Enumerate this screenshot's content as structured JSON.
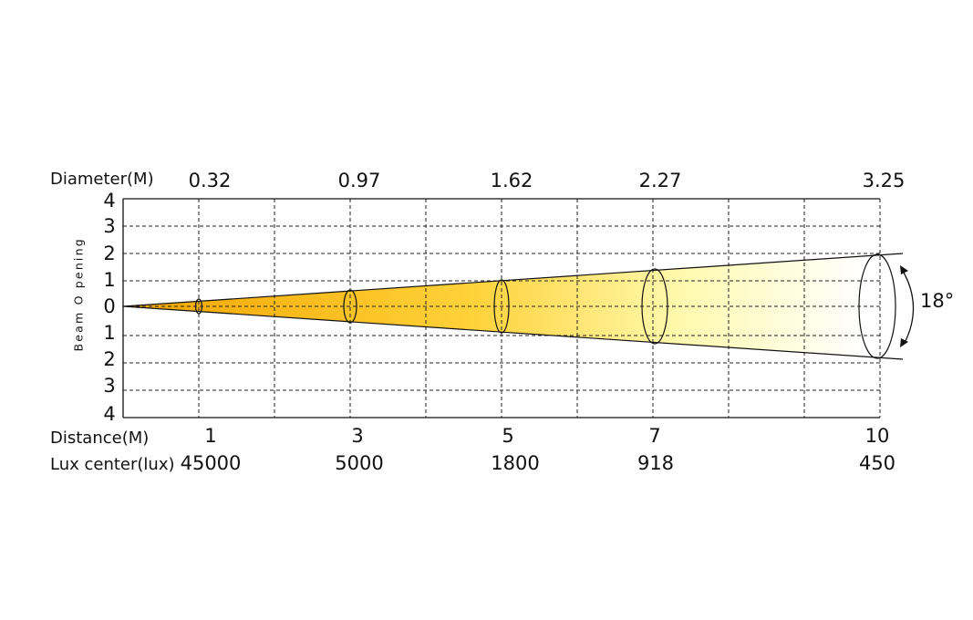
{
  "diameter_row": {
    "label": "Diameter(M)",
    "values": [
      "0.32",
      "0.97",
      "1.62",
      "2.27",
      "3.25"
    ]
  },
  "distance_row": {
    "label": "Distance(M)",
    "values": [
      "1",
      "3",
      "5",
      "7",
      "10"
    ]
  },
  "lux_row": {
    "label": "Lux center(lux)",
    "values": [
      "45000",
      "5000",
      "1800",
      "918",
      "450"
    ]
  },
  "y_axis": {
    "label": "Beam O pening",
    "ticks_top": [
      "4",
      "3",
      "2",
      "1",
      "0"
    ],
    "ticks_bottom": [
      "1",
      "2",
      "3",
      "4"
    ]
  },
  "beam_angle": "18°",
  "colors": {
    "beam_start": "#f3a500",
    "beam_mid": "#ffd23a",
    "beam_light": "#fffab0",
    "beam_end": "#ffffff",
    "grid": "#222222",
    "line": "#111111"
  }
}
